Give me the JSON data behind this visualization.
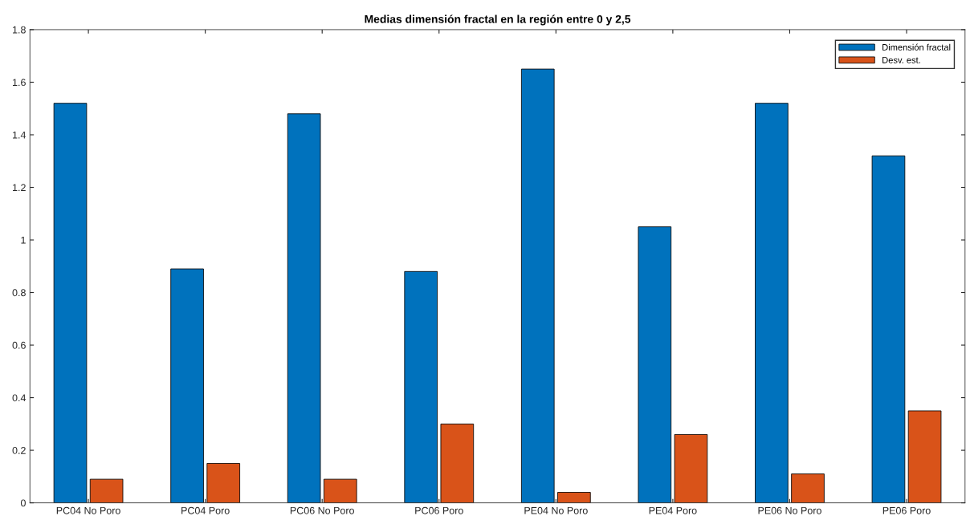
{
  "chart_data": {
    "type": "bar",
    "title": "Medias dimensión fractal en la región entre 0 y 2,5",
    "categories": [
      "PC04 No Poro",
      "PC04 Poro",
      "PC06 No Poro",
      "PC06 Poro",
      "PE04 No Poro",
      "PE04 Poro",
      "PE06 No Poro",
      "PE06 Poro"
    ],
    "series": [
      {
        "name": "Dimensión fractal",
        "color": "#0072bd",
        "values": [
          1.52,
          0.89,
          1.48,
          0.88,
          1.65,
          1.05,
          1.52,
          1.32
        ]
      },
      {
        "name": "Desv. est.",
        "color": "#d95319",
        "values": [
          0.09,
          0.15,
          0.09,
          0.3,
          0.04,
          0.26,
          0.11,
          0.35
        ]
      }
    ],
    "ylim": [
      0,
      1.8
    ],
    "yticks": [
      0,
      0.2,
      0.4,
      0.6,
      0.8,
      1,
      1.2,
      1.4,
      1.6,
      1.8
    ],
    "grid": false,
    "legend": "top right"
  }
}
